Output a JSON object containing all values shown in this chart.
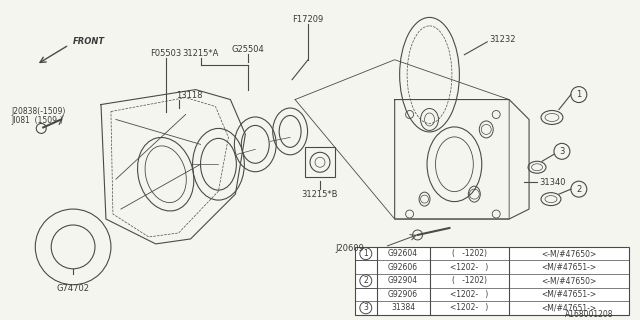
{
  "bg_color": "#f5f5f0",
  "line_color": "#4a4a4a",
  "text_color": "#3a3a3a",
  "diagram_id": "A168001208",
  "table": {
    "rows": [
      {
        "num": "1",
        "col1": "G92604",
        "col2": "(   -1202)",
        "col3": "<-M/#47650>"
      },
      {
        "num": "",
        "col1": "G92606",
        "col2": "<1202-   )",
        "col3": "<M/#47651->"
      },
      {
        "num": "2",
        "col1": "G92904",
        "col2": "(   -1202)",
        "col3": "<-M/#47650>"
      },
      {
        "num": "",
        "col1": "G92906",
        "col2": "<1202-   )",
        "col3": "<M/#47651->"
      },
      {
        "num": "3",
        "col1": "31384",
        "col2": "<1202-   )",
        "col3": "<M/#47651->"
      }
    ]
  }
}
